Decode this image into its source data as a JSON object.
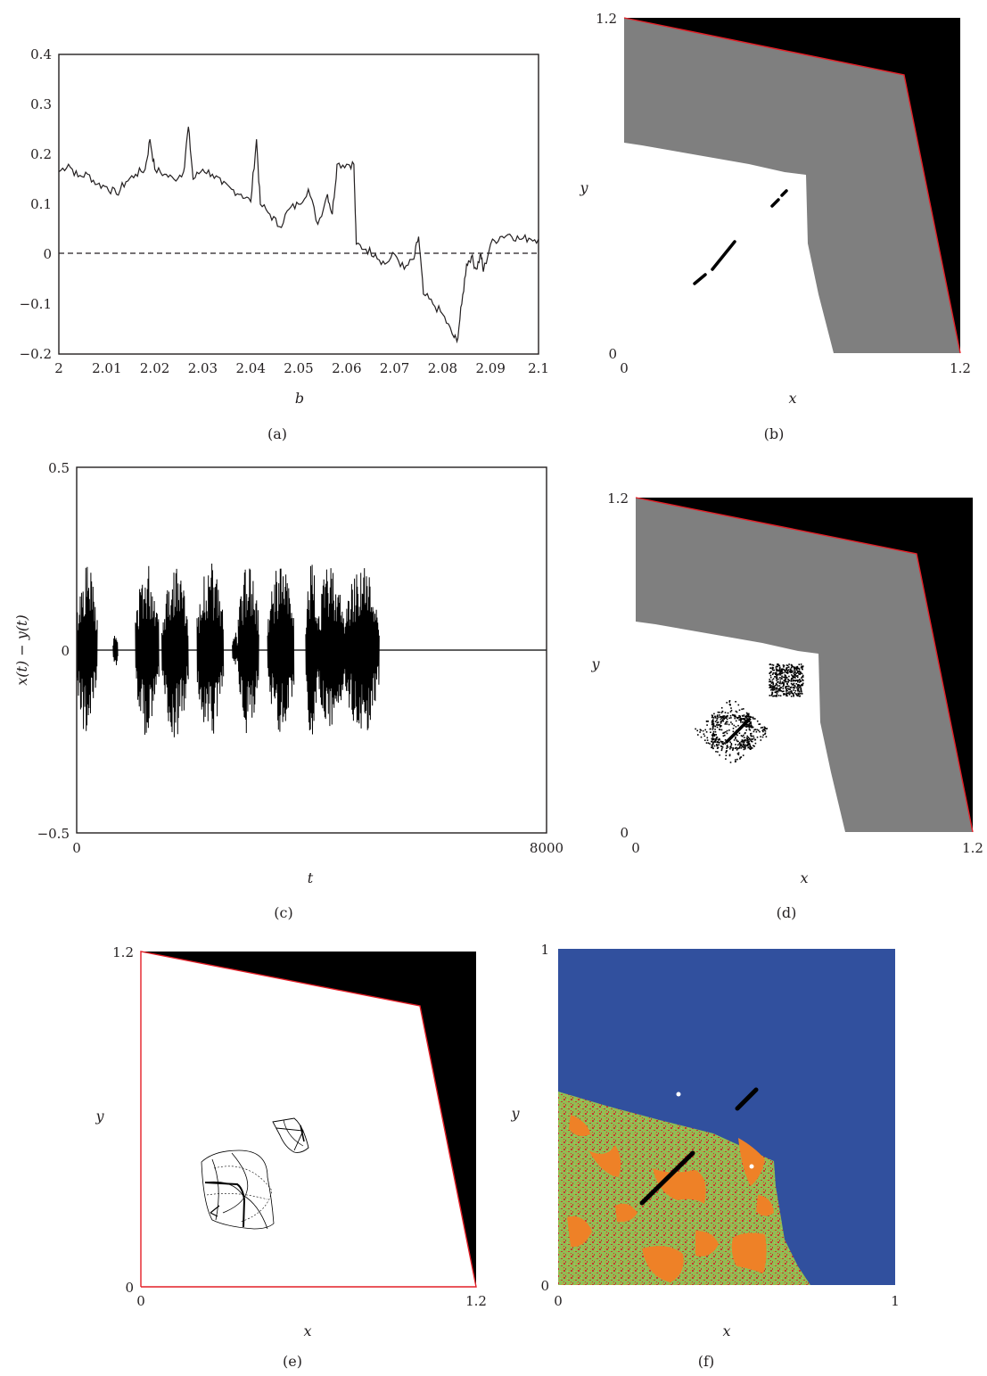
{
  "chart_data": [
    {
      "panel": "(a)",
      "type": "line",
      "xlabel": "b",
      "ylabel": "",
      "xlim": [
        2.0,
        2.1
      ],
      "ylim": [
        -0.2,
        0.4
      ],
      "xticks": [
        "2",
        "2.01",
        "2.02",
        "2.03",
        "2.04",
        "2.05",
        "2.06",
        "2.07",
        "2.08",
        "2.09",
        "2.1"
      ],
      "yticks": [
        "0.4",
        "0.3",
        "0.2",
        "0.1",
        "0",
        "−0.1",
        "−0.2"
      ],
      "reference_line": {
        "y": 0,
        "style": "dashed"
      },
      "series": [
        {
          "x": [
            2.0,
            2.002,
            2.004,
            2.006,
            2.008,
            2.01,
            2.012,
            2.014,
            2.016,
            2.018,
            2.019,
            2.02,
            2.022,
            2.024,
            2.026,
            2.027,
            2.028,
            2.03,
            2.032,
            2.034,
            2.036,
            2.038,
            2.04,
            2.0412,
            2.042,
            2.044,
            2.046,
            2.048,
            2.05,
            2.052,
            2.054,
            2.056,
            2.057,
            2.058,
            2.06,
            2.0615,
            2.062,
            2.064,
            2.066,
            2.068,
            2.07,
            2.072,
            2.074,
            2.075,
            2.076,
            2.078,
            2.08,
            2.082,
            2.083,
            2.084,
            2.085,
            2.086,
            2.087,
            2.088,
            2.0885,
            2.09,
            2.092,
            2.094,
            2.096,
            2.098,
            2.1
          ],
          "y": [
            0.165,
            0.18,
            0.155,
            0.16,
            0.14,
            0.135,
            0.12,
            0.145,
            0.16,
            0.17,
            0.23,
            0.17,
            0.16,
            0.15,
            0.165,
            0.255,
            0.15,
            0.17,
            0.16,
            0.14,
            0.13,
            0.12,
            0.105,
            0.23,
            0.1,
            0.08,
            0.055,
            0.09,
            0.1,
            0.13,
            0.06,
            0.12,
            0.08,
            0.18,
            0.18,
            0.18,
            0.02,
            0.01,
            0.0,
            -0.02,
            0.0,
            -0.03,
            -0.01,
            0.035,
            -0.08,
            -0.1,
            -0.12,
            -0.16,
            -0.175,
            -0.1,
            -0.02,
            -0.005,
            -0.03,
            0.0,
            -0.035,
            0.02,
            0.035,
            0.04,
            0.03,
            0.032,
            0.03
          ]
        }
      ]
    },
    {
      "panel": "(b)",
      "type": "map",
      "xlabel": "x",
      "ylabel": "y",
      "xlim": [
        0,
        1.2
      ],
      "ylim": [
        0,
        1.2
      ],
      "xticks": [
        "0",
        "1.2"
      ],
      "yticks": [
        "1.2",
        "0"
      ],
      "colors": {
        "black": "#000000",
        "gray": "#7f7f7f",
        "white": "#ffffff",
        "boundary": "#e41e26"
      }
    },
    {
      "panel": "(c)",
      "type": "line",
      "xlabel": "t",
      "ylabel": "x(t) − y(t)",
      "xlim": [
        0,
        8000
      ],
      "ylim": [
        -0.5,
        0.5
      ],
      "xticks": [
        "0",
        "8000"
      ],
      "yticks": [
        "0.5",
        "0",
        "−0.5"
      ],
      "burst_intervals": [
        [
          0,
          350
        ],
        [
          620,
          700
        ],
        [
          1000,
          1400
        ],
        [
          1450,
          1900
        ],
        [
          2050,
          2500
        ],
        [
          2650,
          2750
        ],
        [
          2750,
          3100
        ],
        [
          3250,
          3700
        ],
        [
          3900,
          4100
        ],
        [
          4100,
          4550
        ],
        [
          4550,
          5150
        ]
      ],
      "burst_amplitude": 0.24
    },
    {
      "panel": "(d)",
      "type": "map",
      "xlabel": "x",
      "ylabel": "y",
      "xlim": [
        0,
        1.2
      ],
      "ylim": [
        0,
        1.2
      ],
      "xticks": [
        "0",
        "1.2"
      ],
      "yticks": [
        "1.2",
        "0"
      ],
      "colors": {
        "black": "#000000",
        "gray": "#7f7f7f",
        "white": "#ffffff",
        "boundary": "#e41e26"
      }
    },
    {
      "panel": "(e)",
      "type": "map",
      "xlabel": "x",
      "ylabel": "y",
      "xlim": [
        0,
        1.2
      ],
      "ylim": [
        0,
        1.2
      ],
      "xticks": [
        "0",
        "1.2"
      ],
      "yticks": [
        "1.2",
        "0"
      ],
      "colors": {
        "black": "#000000",
        "white": "#ffffff",
        "boundary": "#e41e26"
      }
    },
    {
      "panel": "(f)",
      "type": "map",
      "xlabel": "x",
      "ylabel": "y",
      "xlim": [
        0,
        1
      ],
      "ylim": [
        0,
        1
      ],
      "xticks": [
        "0",
        "1"
      ],
      "yticks": [
        "1",
        "0"
      ],
      "colors": {
        "blue": "#31509e",
        "orange": "#ee8127",
        "green": "#8fbe55",
        "red": "#c9362e",
        "black": "#000000"
      }
    }
  ]
}
